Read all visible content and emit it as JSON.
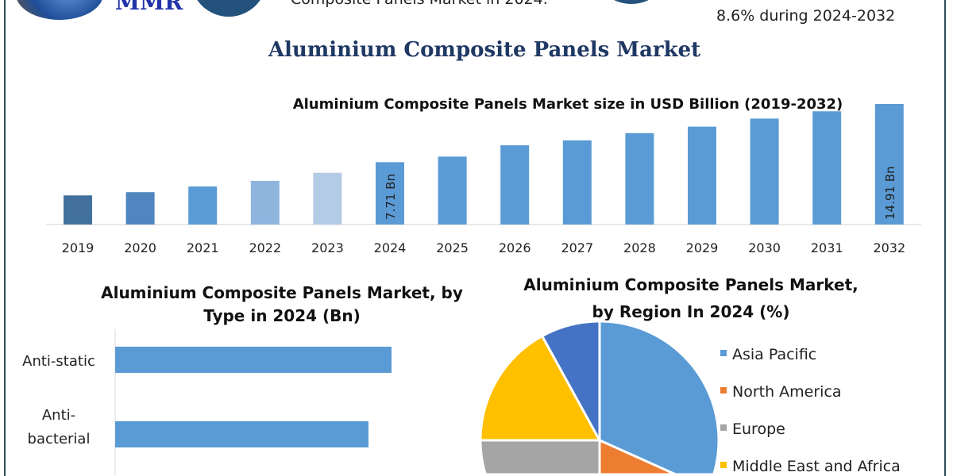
{
  "header": {
    "logo_text": "MMR",
    "fact_left": "Composite Panels Market in 2024.",
    "fact_right": "8.6% during 2024-2032"
  },
  "main_title": "Aluminium Composite Panels Market",
  "colors": {
    "bar": "#5B9BD5",
    "title": "#1f3864",
    "frame": "#2f4f5a"
  },
  "chart_data": [
    {
      "type": "bar",
      "title": "Aluminium Composite Panels Market size in USD Billion (2019-2032)",
      "categories": [
        "2019",
        "2020",
        "2021",
        "2022",
        "2023",
        "2024",
        "2025",
        "2026",
        "2027",
        "2028",
        "2029",
        "2030",
        "2031",
        "2032"
      ],
      "values": [
        3.6,
        4.0,
        4.7,
        5.4,
        6.4,
        7.71,
        8.4,
        9.8,
        10.4,
        11.3,
        12.1,
        13.1,
        14.0,
        14.91
      ],
      "colors": [
        "#41719c",
        "#4f86bf",
        "#5b9bd5",
        "#8fb4de",
        "#b4cbe6",
        "#5b9bd5",
        "#5b9bd5",
        "#5b9bd5",
        "#5b9bd5",
        "#5b9bd5",
        "#5b9bd5",
        "#5b9bd5",
        "#5b9bd5",
        "#5b9bd5"
      ],
      "data_labels": {
        "2024": "7.71 Bn",
        "2032": "14.91 Bn"
      },
      "ylim": [
        0,
        15.5
      ],
      "grid": false
    },
    {
      "type": "bar",
      "orientation": "horizontal",
      "title_line1": "Aluminium Composite Panels Market, by",
      "title_line2": "Type in 2024 (Bn)",
      "categories": [
        [
          "Anti-static"
        ],
        [
          "Anti-",
          "bacterial"
        ]
      ],
      "values": [
        2.4,
        2.2
      ],
      "xlim": [
        0,
        2.6
      ]
    },
    {
      "type": "pie",
      "title_line1": "Aluminium Composite Panels Market,",
      "title_line2": "by Region In 2024 (%)",
      "slices": [
        {
          "name": "Asia Pacific",
          "value": 39,
          "color": "#5B9BD5"
        },
        {
          "name": "North America",
          "value": 11,
          "color": "#ED7D31"
        },
        {
          "name": "Europe",
          "value": 25,
          "color": "#A5A5A5"
        },
        {
          "name": "Middle East and Africa",
          "value": 17,
          "color": "#FFC000"
        },
        {
          "name": "",
          "value": 8,
          "color": "#4472C4"
        }
      ],
      "legend": "right"
    }
  ]
}
